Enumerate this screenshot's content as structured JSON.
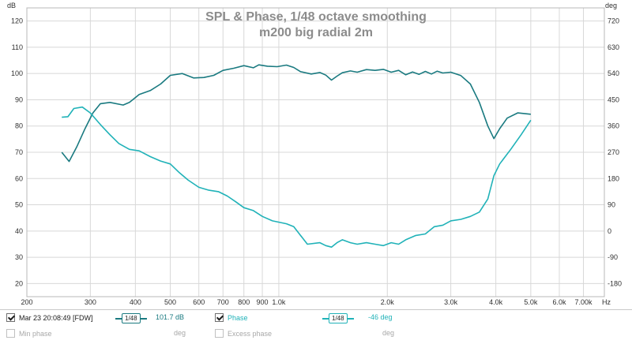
{
  "chart_data": {
    "type": "line",
    "title": "SPL & Phase, 1/48 octave smoothing",
    "subtitle": "m200 big radial 2m",
    "left_axis": {
      "unit": "dB",
      "min": 15,
      "max": 125,
      "ticks": [
        20,
        30,
        40,
        50,
        60,
        70,
        80,
        90,
        100,
        110,
        120
      ]
    },
    "right_axis": {
      "unit": "deg",
      "min": -225,
      "max": 765,
      "ticks": [
        -180,
        -90,
        0,
        90,
        180,
        270,
        360,
        450,
        540,
        630,
        720
      ],
      "tick_labels": [
        "-180",
        "-90",
        "0",
        "90",
        "180",
        "270",
        "360",
        "450",
        "540",
        "630",
        "720"
      ]
    },
    "x_axis": {
      "scale": "log",
      "min": 200,
      "max": 8000,
      "unit": "Hz",
      "ticks": [
        200,
        300,
        400,
        500,
        600,
        700,
        800,
        900,
        1000,
        2000,
        3000,
        4000,
        5000,
        6000,
        7000
      ],
      "tick_labels": [
        "200",
        "300",
        "400",
        "500",
        "600",
        "700",
        "800",
        "900",
        "1.0k",
        "2.0k",
        "3.0k",
        "4.0k",
        "5.0k",
        "6.0k",
        "7.00k"
      ]
    },
    "grid": true,
    "series": [
      {
        "name": "Mar 23 20:08:49 [FDW]",
        "axis": "left",
        "color": "#1a7a80",
        "points": [
          [
            250,
            70
          ],
          [
            262,
            66.5
          ],
          [
            275,
            72
          ],
          [
            290,
            79
          ],
          [
            305,
            85
          ],
          [
            320,
            88.5
          ],
          [
            340,
            89
          ],
          [
            370,
            88
          ],
          [
            385,
            89
          ],
          [
            410,
            92
          ],
          [
            440,
            93.5
          ],
          [
            470,
            96
          ],
          [
            500,
            99.3
          ],
          [
            540,
            100
          ],
          [
            580,
            98.3
          ],
          [
            620,
            98.5
          ],
          [
            660,
            99.3
          ],
          [
            700,
            101.2
          ],
          [
            750,
            102
          ],
          [
            800,
            103
          ],
          [
            850,
            102.2
          ],
          [
            880,
            103.3
          ],
          [
            930,
            102.8
          ],
          [
            990,
            102.6
          ],
          [
            1050,
            103.2
          ],
          [
            1100,
            102.3
          ],
          [
            1150,
            100.7
          ],
          [
            1230,
            99.8
          ],
          [
            1300,
            100.4
          ],
          [
            1350,
            99.4
          ],
          [
            1400,
            97.5
          ],
          [
            1450,
            99
          ],
          [
            1500,
            100.3
          ],
          [
            1580,
            101
          ],
          [
            1650,
            100.5
          ],
          [
            1750,
            101.5
          ],
          [
            1850,
            101.2
          ],
          [
            1950,
            101.6
          ],
          [
            2050,
            100.5
          ],
          [
            2150,
            101.2
          ],
          [
            2250,
            99.5
          ],
          [
            2350,
            100.6
          ],
          [
            2450,
            99.7
          ],
          [
            2550,
            100.8
          ],
          [
            2650,
            99.8
          ],
          [
            2750,
            100.9
          ],
          [
            2850,
            100.2
          ],
          [
            3000,
            100.5
          ],
          [
            3200,
            99.2
          ],
          [
            3400,
            96
          ],
          [
            3600,
            89
          ],
          [
            3800,
            80
          ],
          [
            3950,
            75.2
          ],
          [
            4100,
            79
          ],
          [
            4300,
            83
          ],
          [
            4600,
            85
          ],
          [
            5000,
            84.5
          ]
        ]
      },
      {
        "name": "Phase",
        "axis": "right",
        "color": "#20b2b8",
        "points": [
          [
            250,
            390
          ],
          [
            260,
            392
          ],
          [
            270,
            420
          ],
          [
            285,
            425
          ],
          [
            300,
            405
          ],
          [
            320,
            365
          ],
          [
            340,
            330
          ],
          [
            360,
            300
          ],
          [
            385,
            280
          ],
          [
            410,
            275
          ],
          [
            440,
            255
          ],
          [
            470,
            240
          ],
          [
            500,
            230
          ],
          [
            530,
            200
          ],
          [
            560,
            175
          ],
          [
            600,
            150
          ],
          [
            640,
            140
          ],
          [
            680,
            135
          ],
          [
            720,
            120
          ],
          [
            760,
            100
          ],
          [
            800,
            80
          ],
          [
            850,
            70
          ],
          [
            900,
            50
          ],
          [
            960,
            35
          ],
          [
            1050,
            25
          ],
          [
            1100,
            15
          ],
          [
            1200,
            -45
          ],
          [
            1300,
            -40
          ],
          [
            1350,
            -50
          ],
          [
            1400,
            -55
          ],
          [
            1450,
            -40
          ],
          [
            1500,
            -30
          ],
          [
            1580,
            -40
          ],
          [
            1650,
            -45
          ],
          [
            1750,
            -40
          ],
          [
            1850,
            -45
          ],
          [
            1950,
            -50
          ],
          [
            2050,
            -40
          ],
          [
            2150,
            -45
          ],
          [
            2250,
            -30
          ],
          [
            2400,
            -15
          ],
          [
            2550,
            -10
          ],
          [
            2700,
            15
          ],
          [
            2850,
            20
          ],
          [
            3000,
            35
          ],
          [
            3200,
            40
          ],
          [
            3400,
            50
          ],
          [
            3600,
            65
          ],
          [
            3800,
            110
          ],
          [
            3950,
            190
          ],
          [
            4100,
            230
          ],
          [
            4400,
            280
          ],
          [
            4700,
            330
          ],
          [
            5000,
            380
          ]
        ]
      }
    ]
  },
  "legend": {
    "row1": {
      "measurement_label": "Mar 23 20:08:49 [FDW]",
      "smoothing_badge": "1/48",
      "spl_value": "101.7 dB",
      "phase_label": "Phase",
      "phase_smoothing_badge": "1/48",
      "phase_value": "-46 deg"
    },
    "row2": {
      "min_phase_label": "Min phase",
      "min_phase_unit": "deg",
      "excess_phase_label": "Excess phase",
      "excess_phase_unit": "deg"
    }
  },
  "colors": {
    "spl": "#1a7a80",
    "phase": "#20b2b8",
    "grid": "#d8d8d8"
  }
}
